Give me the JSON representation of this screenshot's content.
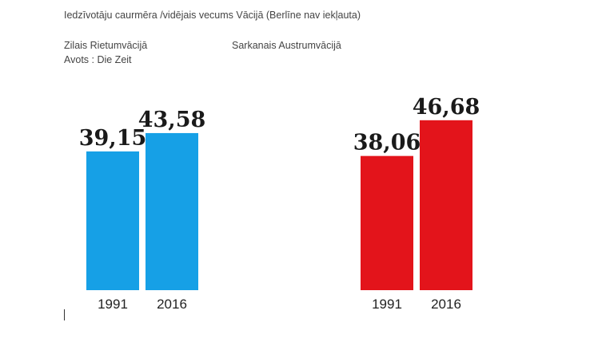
{
  "title": "Iedzīvotāju caurmēra /vidējais vecums  Vācijā (Berlīne nav iekļauta)",
  "notes": {
    "west": "Zilais Rietumvācijā",
    "source": "Avots : Die Zeit",
    "east": "Sarkanais Austrumvācijā"
  },
  "colors": {
    "west": "#16a0e6",
    "east": "#e3141b"
  },
  "chart_data": [
    {
      "type": "bar",
      "group": "west",
      "categories": [
        "1991",
        "2016"
      ],
      "values": [
        39.15,
        43.58
      ],
      "labels": [
        "39,15",
        "43,58"
      ],
      "ylim": [
        0,
        50
      ]
    },
    {
      "type": "bar",
      "group": "east",
      "categories": [
        "1991",
        "2016"
      ],
      "values": [
        38.06,
        46.68
      ],
      "labels": [
        "38,06",
        "46,68"
      ],
      "ylim": [
        0,
        50
      ]
    }
  ]
}
